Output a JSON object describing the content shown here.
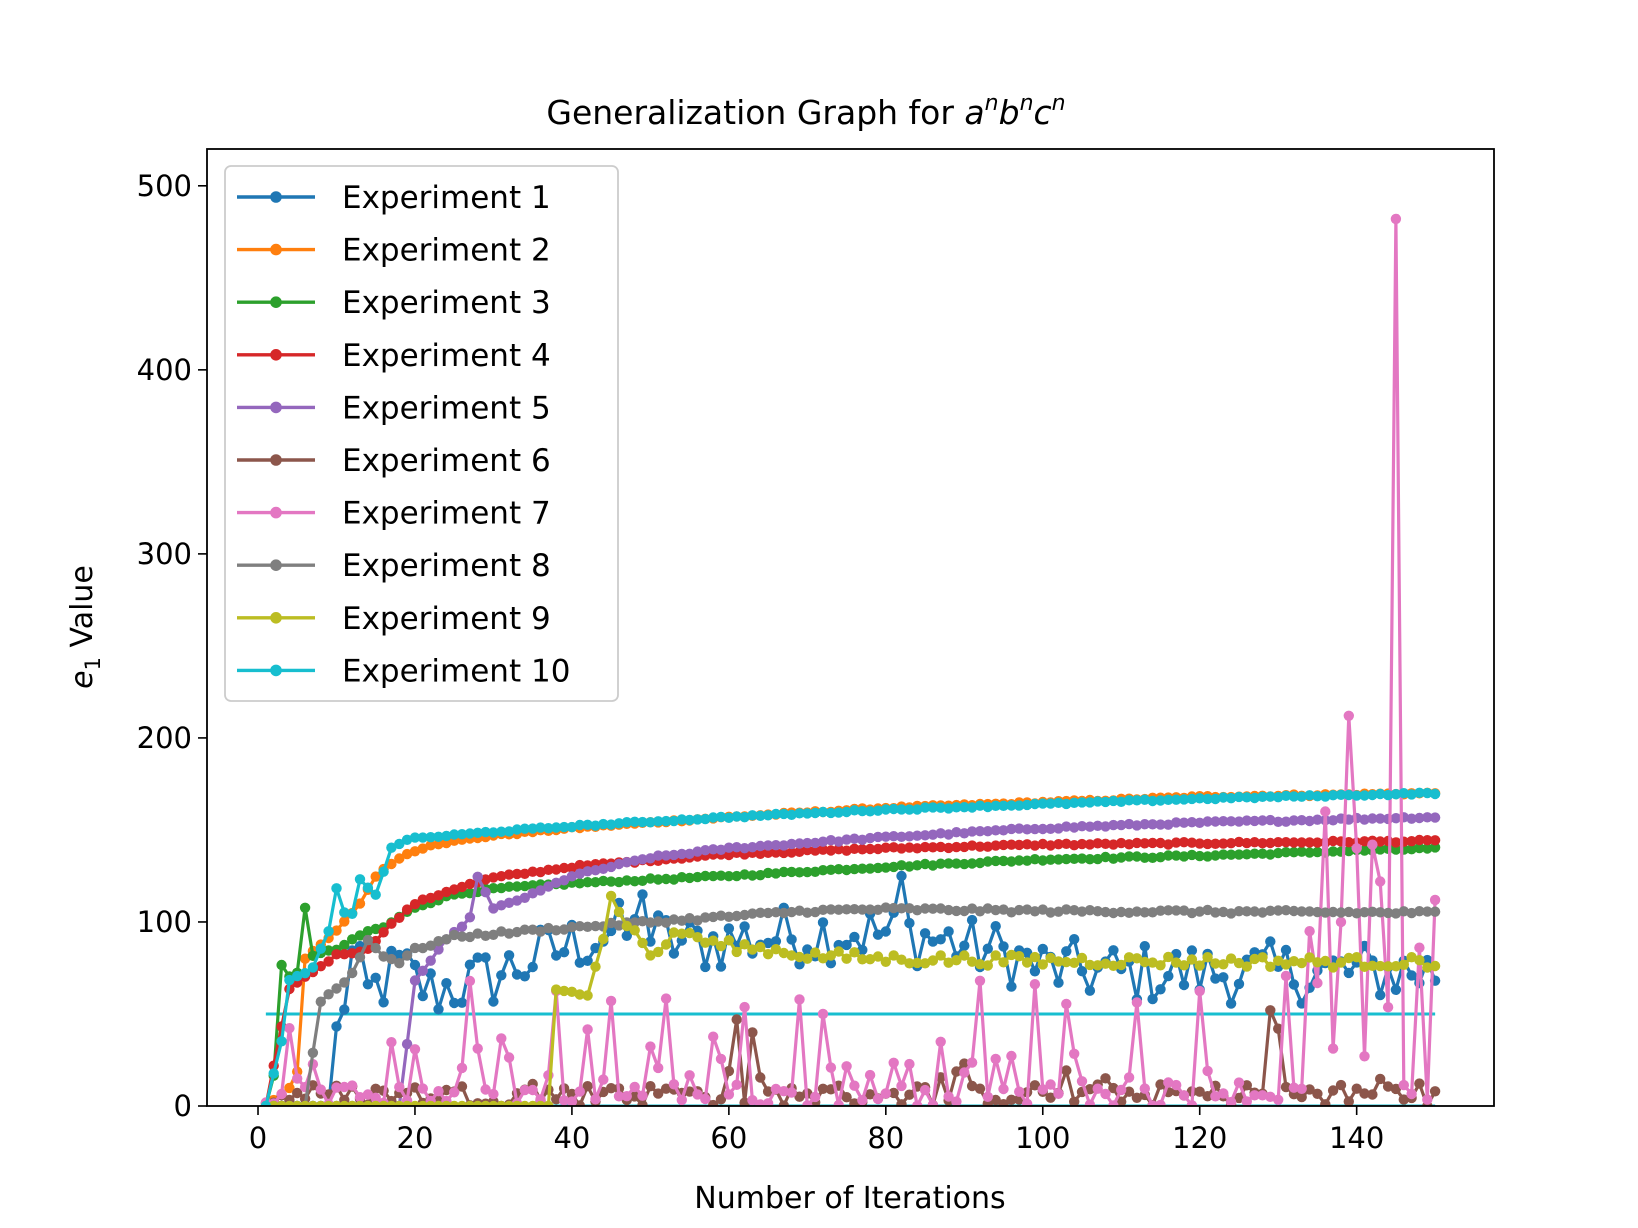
{
  "chart_data": {
    "type": "line",
    "title": "Generalization Graph for aⁿbⁿcⁿ",
    "title_parts": {
      "prefix": "Generalization Graph for ",
      "var_a": "a",
      "var_b": "b",
      "var_c": "c",
      "sup": "n"
    },
    "xlabel": "Number of Iterations",
    "ylabel_parts": {
      "base": "e",
      "sub": "1",
      "rest": " Value"
    },
    "xlim": [
      -6.5,
      157.5
    ],
    "ylim": [
      0,
      520
    ],
    "xticks": [
      0,
      20,
      40,
      60,
      80,
      100,
      120,
      140
    ],
    "yticks": [
      0,
      100,
      200,
      300,
      400,
      500
    ],
    "grid": false,
    "legend_position": "top-left",
    "reference_lines": [
      {
        "y": 50,
        "x_from": 1,
        "x_to": 150,
        "color": "#17becf"
      },
      {
        "y": 0,
        "x_from": 1,
        "x_to": 150,
        "color": "#17becf"
      }
    ],
    "series": [
      {
        "name": "Experiment 1",
        "color": "#1f77b4",
        "anchors": [
          [
            1,
            0
          ],
          [
            9,
            0
          ],
          [
            10,
            38
          ],
          [
            12,
            80
          ],
          [
            14,
            60
          ],
          [
            18,
            75
          ],
          [
            22,
            62
          ],
          [
            30,
            70
          ],
          [
            35,
            80
          ],
          [
            45,
            95
          ],
          [
            55,
            88
          ],
          [
            65,
            92
          ],
          [
            75,
            95
          ],
          [
            85,
            92
          ],
          [
            95,
            83
          ],
          [
            100,
            75
          ],
          [
            110,
            72
          ],
          [
            150,
            73
          ]
        ],
        "noise": 17,
        "spikes": [
          [
            49,
            115
          ],
          [
            82,
            125
          ],
          [
            91,
            101
          ]
        ]
      },
      {
        "name": "Experiment 2",
        "color": "#ff7f0e",
        "anchors": [
          [
            1,
            0
          ],
          [
            4,
            10
          ],
          [
            5,
            19
          ],
          [
            6,
            80
          ],
          [
            10,
            95
          ],
          [
            13,
            110
          ],
          [
            15,
            125
          ],
          [
            18,
            135
          ],
          [
            22,
            142
          ],
          [
            30,
            147
          ],
          [
            40,
            151
          ],
          [
            60,
            157
          ],
          [
            80,
            162
          ],
          [
            100,
            165
          ],
          [
            120,
            168
          ],
          [
            150,
            170
          ]
        ],
        "noise": 0.5,
        "spikes": []
      },
      {
        "name": "Experiment 3",
        "color": "#2ca02c",
        "anchors": [
          [
            1,
            0
          ],
          [
            2,
            17
          ],
          [
            3,
            76
          ],
          [
            4,
            70
          ],
          [
            5,
            72
          ],
          [
            6,
            108
          ],
          [
            7,
            82
          ],
          [
            10,
            85
          ],
          [
            14,
            95
          ],
          [
            16,
            97
          ],
          [
            20,
            108
          ],
          [
            25,
            115
          ],
          [
            30,
            118
          ],
          [
            40,
            121
          ],
          [
            60,
            125
          ],
          [
            80,
            130
          ],
          [
            100,
            134
          ],
          [
            120,
            136
          ],
          [
            150,
            140
          ]
        ],
        "noise": 0.6,
        "spikes": []
      },
      {
        "name": "Experiment 4",
        "color": "#d62728",
        "anchors": [
          [
            1,
            0
          ],
          [
            4,
            64
          ],
          [
            6,
            70
          ],
          [
            10,
            82
          ],
          [
            14,
            85
          ],
          [
            16,
            95
          ],
          [
            20,
            110
          ],
          [
            25,
            118
          ],
          [
            30,
            124
          ],
          [
            40,
            130
          ],
          [
            60,
            137
          ],
          [
            80,
            140
          ],
          [
            100,
            142
          ],
          [
            150,
            144
          ]
        ],
        "noise": 0.6,
        "spikes": []
      },
      {
        "name": "Experiment 5",
        "color": "#9467bd",
        "anchors": [
          [
            1,
            0
          ],
          [
            18,
            0
          ],
          [
            20,
            68
          ],
          [
            24,
            90
          ],
          [
            27,
            102
          ],
          [
            28,
            125
          ],
          [
            30,
            107
          ],
          [
            35,
            115
          ],
          [
            40,
            125
          ],
          [
            50,
            135
          ],
          [
            60,
            140
          ],
          [
            80,
            146
          ],
          [
            100,
            151
          ],
          [
            120,
            154
          ],
          [
            150,
            157
          ]
        ],
        "noise": 0.6,
        "spikes": []
      },
      {
        "name": "Experiment 6",
        "color": "#8c564b",
        "anchors": [
          [
            1,
            0
          ],
          [
            150,
            0
          ]
        ],
        "noise_abs": 24,
        "spikes": [
          [
            61,
            47
          ],
          [
            63,
            40
          ],
          [
            129,
            52
          ],
          [
            130,
            42
          ]
        ]
      },
      {
        "name": "Experiment 7",
        "color": "#e377c2",
        "anchors": [
          [
            1,
            0
          ],
          [
            150,
            0
          ]
        ],
        "noise_abs": 72,
        "spikes": [
          [
            134,
            95
          ],
          [
            136,
            160
          ],
          [
            138,
            100
          ],
          [
            139,
            212
          ],
          [
            140,
            140
          ],
          [
            142,
            142
          ],
          [
            143,
            122
          ],
          [
            145,
            482
          ],
          [
            148,
            86
          ],
          [
            150,
            112
          ]
        ]
      },
      {
        "name": "Experiment 8",
        "color": "#7f7f7f",
        "anchors": [
          [
            1,
            0
          ],
          [
            6,
            0
          ],
          [
            8,
            57
          ],
          [
            10,
            64
          ],
          [
            12,
            72
          ],
          [
            14,
            90
          ],
          [
            16,
            82
          ],
          [
            18,
            78
          ],
          [
            20,
            85
          ],
          [
            25,
            92
          ],
          [
            40,
            97
          ],
          [
            60,
            103
          ],
          [
            70,
            106
          ],
          [
            80,
            107
          ],
          [
            100,
            106
          ],
          [
            150,
            105
          ]
        ],
        "noise": 1.0,
        "spikes": []
      },
      {
        "name": "Experiment 9",
        "color": "#bcbd22",
        "anchors": [
          [
            1,
            0
          ],
          [
            37,
            0
          ],
          [
            38,
            62
          ],
          [
            40,
            65
          ],
          [
            42,
            62
          ],
          [
            44,
            92
          ],
          [
            45,
            113
          ],
          [
            47,
            100
          ],
          [
            50,
            82
          ],
          [
            54,
            95
          ],
          [
            58,
            88
          ],
          [
            65,
            85
          ],
          [
            70,
            82
          ],
          [
            80,
            80
          ],
          [
            100,
            79
          ],
          [
            150,
            78
          ]
        ],
        "noise": 3,
        "spikes": []
      },
      {
        "name": "Experiment 10",
        "color": "#17becf",
        "anchors": [
          [
            1,
            0
          ],
          [
            3,
            35
          ],
          [
            4,
            68
          ],
          [
            7,
            75
          ],
          [
            9,
            95
          ],
          [
            10,
            118
          ],
          [
            11,
            105
          ],
          [
            12,
            104
          ],
          [
            13,
            123
          ],
          [
            15,
            115
          ],
          [
            17,
            140
          ],
          [
            19,
            145
          ],
          [
            30,
            149
          ],
          [
            40,
            152
          ],
          [
            60,
            157
          ],
          [
            80,
            161
          ],
          [
            100,
            164
          ],
          [
            120,
            167
          ],
          [
            150,
            170
          ]
        ],
        "noise": 0.5,
        "spikes": []
      }
    ]
  }
}
